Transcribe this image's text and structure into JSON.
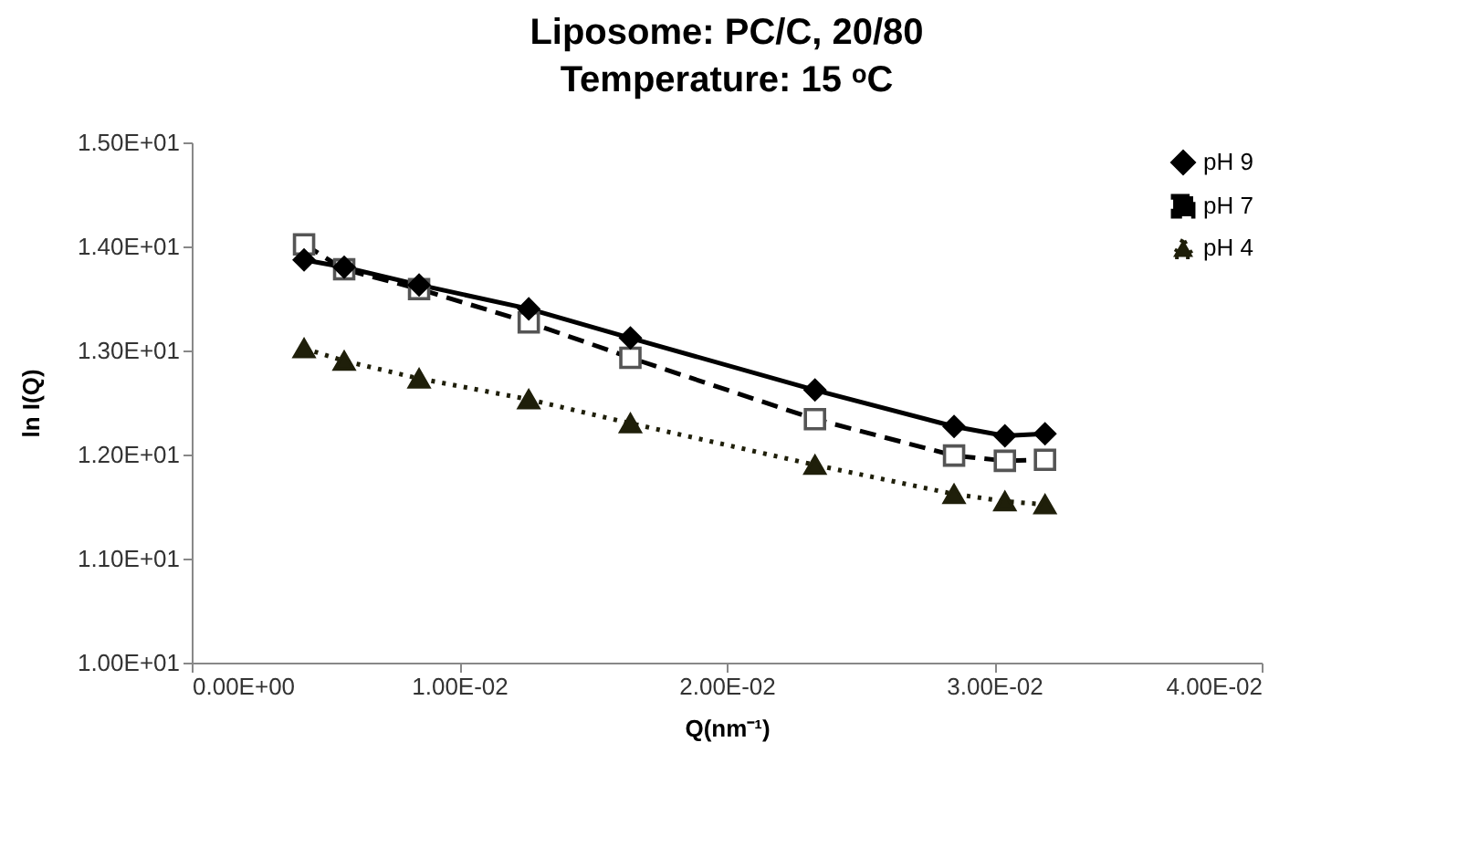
{
  "chart_data": {
    "type": "line",
    "title": "Liposome: PC/C, 20/80",
    "subtitle": "Temperature: 15 ᵒC",
    "xlabel": "Q(nm⁻¹)",
    "ylabel": "ln I(Q)",
    "x": [
      0.0042,
      0.0057,
      0.0085,
      0.0126,
      0.0164,
      0.0233,
      0.0285,
      0.0304,
      0.0319
    ],
    "series": [
      {
        "name": "pH 9",
        "color": "#000000",
        "marker": "diamond",
        "line_style": "solid",
        "values": [
          13.87,
          13.8,
          13.63,
          13.4,
          13.12,
          12.62,
          12.27,
          12.18,
          12.2
        ]
      },
      {
        "name": "pH 7",
        "color": "#000000",
        "marker": "square",
        "line_style": "dashed",
        "values": [
          14.02,
          13.78,
          13.59,
          13.27,
          12.93,
          12.34,
          11.99,
          11.94,
          11.95
        ]
      },
      {
        "name": "pH 4",
        "color": "#1f1f0a",
        "marker": "triangle",
        "line_style": "dotted",
        "values": [
          13.02,
          12.9,
          12.73,
          12.53,
          12.3,
          11.9,
          11.62,
          11.55,
          11.52
        ]
      }
    ],
    "xlim": [
      0,
      0.04
    ],
    "xticks": [
      {
        "value": 0,
        "label": "0.00E+00"
      },
      {
        "value": 0.01,
        "label": "1.00E-02"
      },
      {
        "value": 0.02,
        "label": "2.00E-02"
      },
      {
        "value": 0.03,
        "label": "3.00E-02"
      },
      {
        "value": 0.04,
        "label": "4.00E-02"
      }
    ],
    "ylim": [
      10,
      15
    ],
    "yticks": [
      {
        "value": 10,
        "label": "1.00E+01"
      },
      {
        "value": 11,
        "label": "1.10E+01"
      },
      {
        "value": 12,
        "label": "1.20E+01"
      },
      {
        "value": 13,
        "label": "1.30E+01"
      },
      {
        "value": 14,
        "label": "1.40E+01"
      },
      {
        "value": 15,
        "label": "1.50E+01"
      }
    ],
    "grid": false,
    "legend": "top right"
  }
}
